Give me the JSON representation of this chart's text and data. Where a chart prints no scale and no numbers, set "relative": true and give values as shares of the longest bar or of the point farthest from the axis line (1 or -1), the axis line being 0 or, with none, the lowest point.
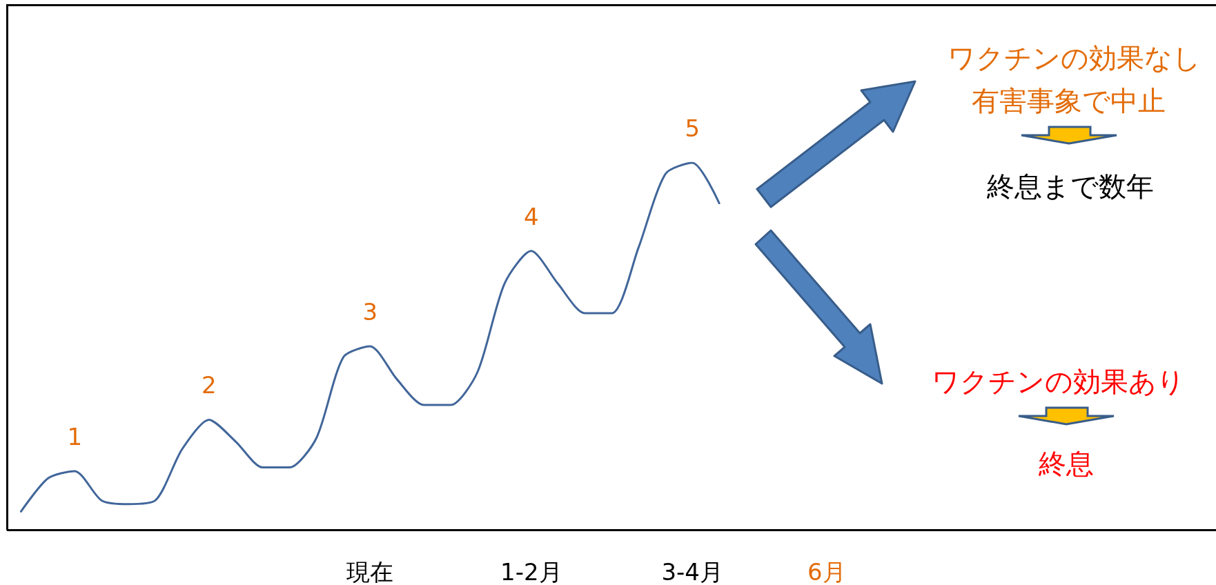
{
  "chart_data": {
    "type": "line",
    "relative": true,
    "color": "#41669a",
    "line_style": "solid",
    "marker": "none",
    "grid": false,
    "tick_labels": "x",
    "categories": [
      null,
      null,
      null,
      null,
      null,
      null,
      null,
      null,
      null,
      null,
      null,
      null,
      null,
      "現在",
      null,
      null,
      null,
      null,
      null,
      "1-2月",
      null,
      null,
      null,
      null,
      null,
      "3-4月",
      null,
      null,
      null,
      null,
      "6月",
      null,
      null,
      null,
      null,
      null,
      null,
      null,
      null,
      null,
      null,
      null,
      null,
      null,
      null
    ],
    "values": [
      0.05,
      0.14,
      0.16,
      0.08,
      0.07,
      0.08,
      0.22,
      0.3,
      0.24,
      0.17,
      0.17,
      0.25,
      0.47,
      0.5,
      0.41,
      0.34,
      0.34,
      0.43,
      0.67,
      0.76,
      0.67,
      0.59,
      0.59,
      0.77,
      0.97,
      1,
      0.89,
      null,
      null,
      null,
      null,
      null,
      null,
      null,
      null,
      null,
      null,
      null,
      null,
      null,
      null,
      null,
      null,
      null,
      null
    ],
    "annotations": [
      "1",
      "2",
      "3",
      "4",
      "5",
      "ワクチンの効果なし",
      "有害事象で中止",
      "終息まで数年",
      "ワクチンの効果あり",
      "終息"
    ]
  }
}
